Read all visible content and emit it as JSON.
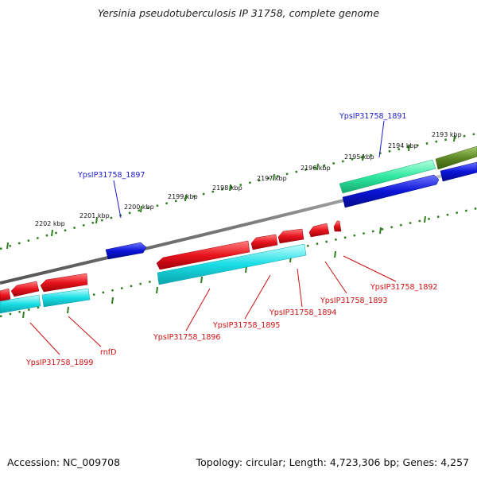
{
  "title": "Yersinia pseudotuberculosis IP 31758, complete genome",
  "footer": {
    "accession": "Accession: NC_009708",
    "topology": "Topology: circular; Length: 4,723,306 bp; Genes: 4,257"
  },
  "colors": {
    "backbone": "#8a8a8a",
    "tick": "#2e7d1f",
    "label_blue": "#1a1acc",
    "label_red": "#cc1111",
    "cds_red": "#e8141e",
    "cds_cyan": "#19dde5",
    "cds_blue": "#0a14d6",
    "cds_teal": "#2ee9a0",
    "cds_olive": "#5e8a24"
  },
  "scale_labels": [
    "2193 kbp",
    "2194 kbp",
    "2195 kbp",
    "2196 kbp",
    "2197 kbp",
    "2198 kbp",
    "2199 kbp",
    "2200 kbp",
    "2201 kbp",
    "2202 kbp"
  ],
  "gene_labels": {
    "g1891": "YpsIP31758_1891",
    "g1897": "YpsIP31758_1897",
    "g1892": "YpsIP31758_1892",
    "g1893": "YpsIP31758_1893",
    "g1894": "YpsIP31758_1894",
    "g1895": "YpsIP31758_1895",
    "g1896": "YpsIP31758_1896",
    "rnfD": "rnfD",
    "g1899": "YpsIP31758_1899"
  }
}
